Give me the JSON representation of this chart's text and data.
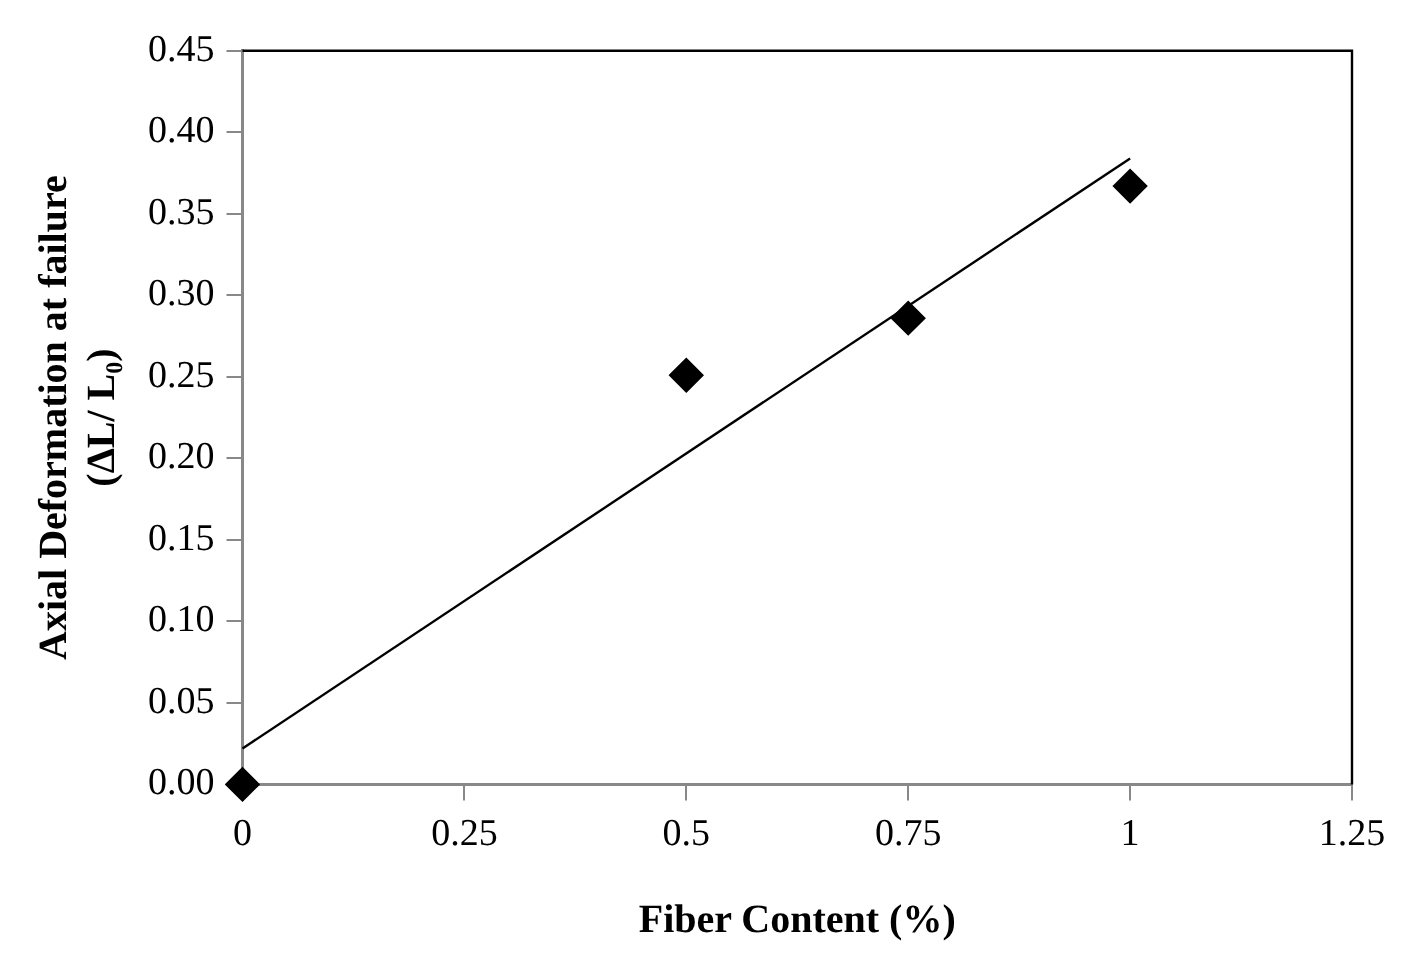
{
  "chart_data": {
    "type": "scatter",
    "xlabel": "Fiber Content (%)",
    "ylabel": "Axial Deformation at failure\n(ΔL/ L₀)",
    "x": [
      0,
      0.5,
      0.75,
      1
    ],
    "series": [
      {
        "color": "#000000",
        "marker": "diamond",
        "values": [
          0,
          0.251,
          0.286,
          0.367
        ]
      },
      {
        "type": "line",
        "color": "#000000",
        "marker": "none",
        "x": [
          0,
          1
        ],
        "values": [
          0.022,
          0.384
        ]
      }
    ],
    "xlim": [
      0,
      1.25
    ],
    "xticks": [
      0,
      0.25,
      0.5,
      0.75,
      1,
      1.25
    ],
    "ylim": [
      0,
      0.45
    ],
    "yticks": [
      {
        "value": 0,
        "label": "0.00"
      },
      {
        "value": 0.05,
        "label": "0.05"
      },
      {
        "value": 0.1,
        "label": "0.10"
      },
      {
        "value": 0.15,
        "label": "0.15"
      },
      {
        "value": 0.2,
        "label": "0.20"
      },
      {
        "value": 0.25,
        "label": "0.25"
      },
      {
        "value": 0.3,
        "label": "0.30"
      },
      {
        "value": 0.35,
        "label": "0.35"
      },
      {
        "value": 0.4,
        "label": "0.40"
      },
      {
        "value": 0.45,
        "label": "0.45"
      }
    ],
    "grid": false,
    "legend": false
  }
}
